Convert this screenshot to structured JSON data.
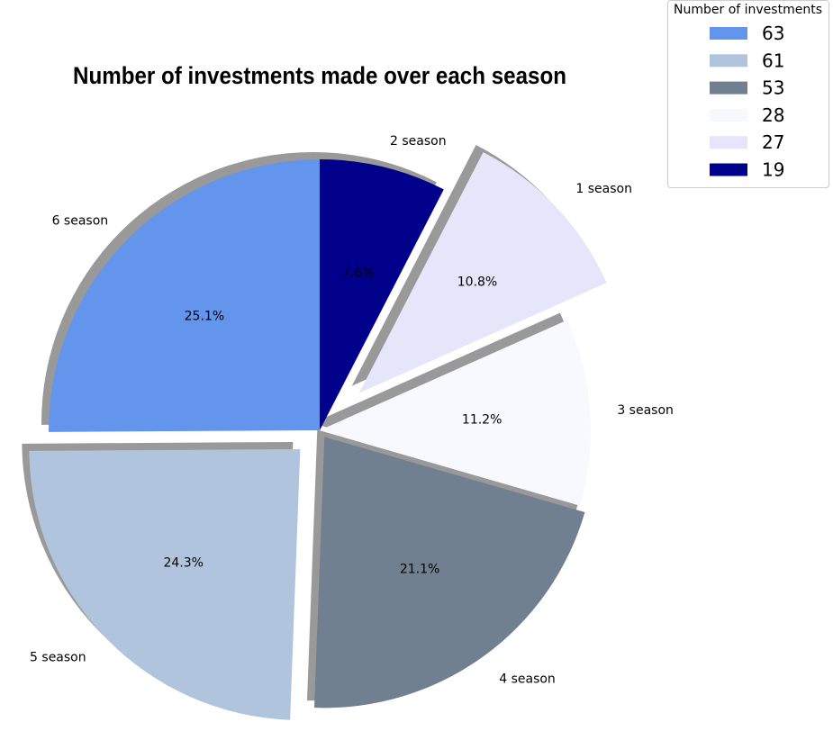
{
  "chart_data": {
    "type": "pie",
    "title": "Number of investments made over each season",
    "slices": [
      {
        "label": "2 season",
        "value": 19,
        "pct": "7.6%",
        "color": "#00008b",
        "explode": 0
      },
      {
        "label": "1 season",
        "value": 27,
        "pct": "10.8%",
        "color": "#e6e6fa",
        "explode": 0.2
      },
      {
        "label": "3 season",
        "value": 28,
        "pct": "11.2%",
        "color": "#f8f8ff",
        "explode": 0
      },
      {
        "label": "4 season",
        "value": 53,
        "pct": "21.1%",
        "color": "#708090",
        "explode": 0.03
      },
      {
        "label": "5 season",
        "value": 61,
        "pct": "24.3%",
        "color": "#b0c4de",
        "explode": 0.1
      },
      {
        "label": "6 season",
        "value": 63,
        "pct": "25.1%",
        "color": "#6495ed",
        "explode": 0
      }
    ],
    "legend": {
      "title": "Number of investments",
      "placement": "top-right",
      "entries": [
        {
          "text": "63",
          "color": "#6495ed"
        },
        {
          "text": "61",
          "color": "#b0c4de"
        },
        {
          "text": "53",
          "color": "#708090"
        },
        {
          "text": "28",
          "color": "#f8f8ff"
        },
        {
          "text": "27",
          "color": "#e6e6fa"
        },
        {
          "text": "19",
          "color": "#00008b"
        }
      ]
    },
    "shadow": true,
    "start_angle_deg": 90,
    "direction": "clockwise"
  }
}
